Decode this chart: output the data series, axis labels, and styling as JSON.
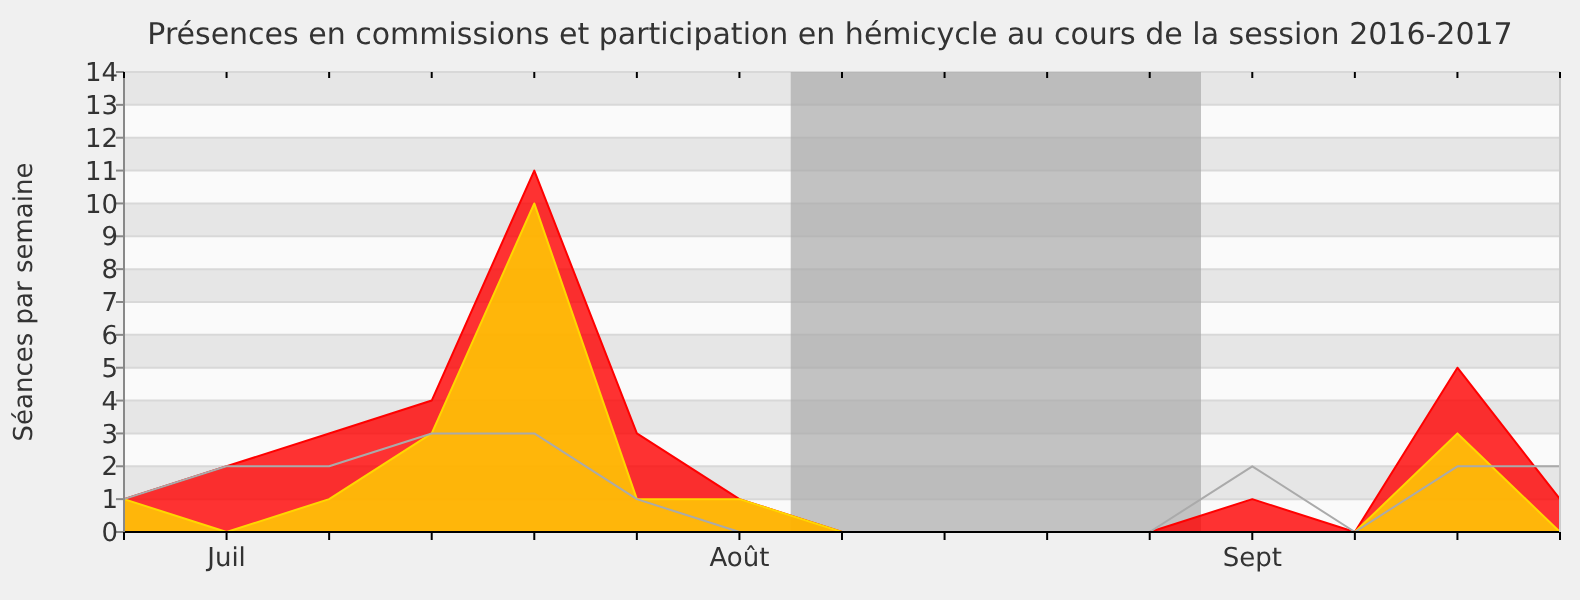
{
  "chart_data": {
    "type": "area",
    "title": "Présences en commissions et participation en hémicycle au cours de la session 2016-2017",
    "ylabel": "Séances par semaine",
    "categories": [
      null,
      "Juil",
      null,
      null,
      null,
      null,
      "Août",
      null,
      null,
      null,
      null,
      "Sept",
      null,
      null,
      null
    ],
    "ylim": [
      0,
      14
    ],
    "yticks": [
      0,
      1,
      2,
      3,
      4,
      5,
      6,
      7,
      8,
      9,
      10,
      11,
      12,
      13,
      14
    ],
    "grid": "y",
    "series": [
      {
        "color": "#ff0000",
        "values": [
          1,
          2,
          3,
          4,
          11,
          3,
          1,
          0,
          0,
          0,
          0,
          1,
          0,
          5,
          1
        ]
      },
      {
        "color": "#ffd700",
        "values": [
          1,
          0,
          1,
          3,
          10,
          1,
          1,
          0,
          0,
          0,
          0,
          0,
          0,
          3,
          0
        ]
      },
      {
        "type": "line",
        "color": "#aaaaaa",
        "values": [
          1,
          2,
          2,
          3,
          3,
          1,
          0,
          0,
          0,
          0,
          0,
          2,
          0,
          2,
          2
        ]
      }
    ]
  }
}
